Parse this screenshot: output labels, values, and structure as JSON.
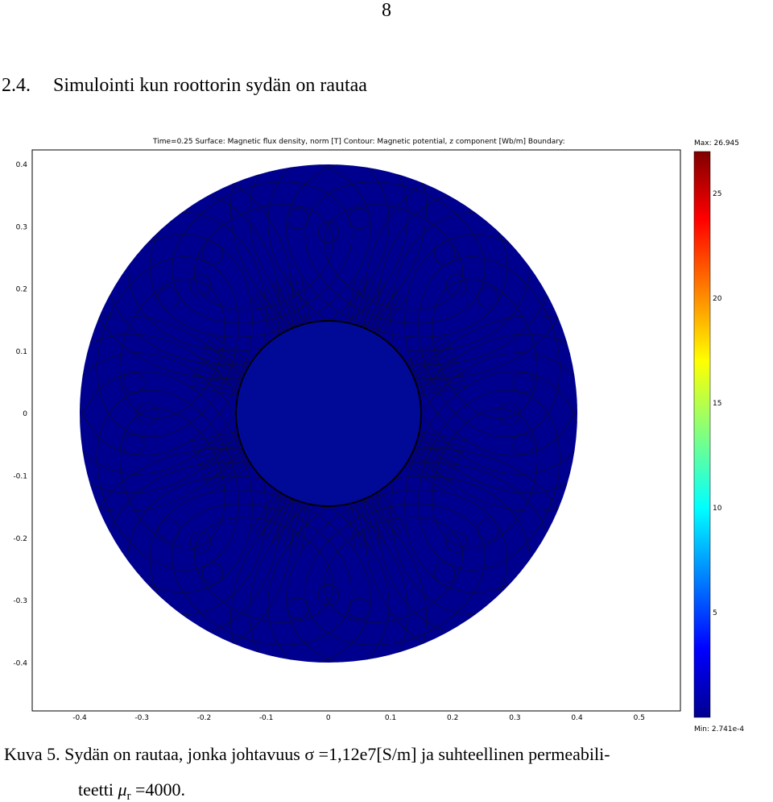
{
  "page_number": "8",
  "heading": {
    "number": "2.4.",
    "title": "Simulointi kun roottorin sydän on rautaa"
  },
  "figure": {
    "plot_title": "Time=0.25   Surface: Magnetic flux density, norm [T]   Contour: Magnetic potential, z component [Wb/m]   Boundary:",
    "y_tick_labels": [
      "0.4",
      "0.3",
      "0.2",
      "0.1",
      "0",
      "-0.1",
      "-0.2",
      "-0.3",
      "-0.4"
    ],
    "x_tick_labels": [
      "-0.4",
      "-0.3",
      "-0.2",
      "-0.1",
      "0",
      "0.1",
      "0.2",
      "0.3",
      "0.4",
      "0.5"
    ],
    "colorbar": {
      "max_label": "Max: 26.945",
      "min_label": "Min: 2.741e-4",
      "tick_labels": [
        "25",
        "20",
        "15",
        "10",
        "5"
      ]
    }
  },
  "caption": {
    "line1": "Kuva 5. Sydän on rautaa, jonka johtavuus σ =1,12e7[S/m] ja suhteellinen permeabili-",
    "line2_text": "teetti ",
    "symbol": "μ",
    "subscript": "r",
    "line2_end": " =4000."
  }
}
